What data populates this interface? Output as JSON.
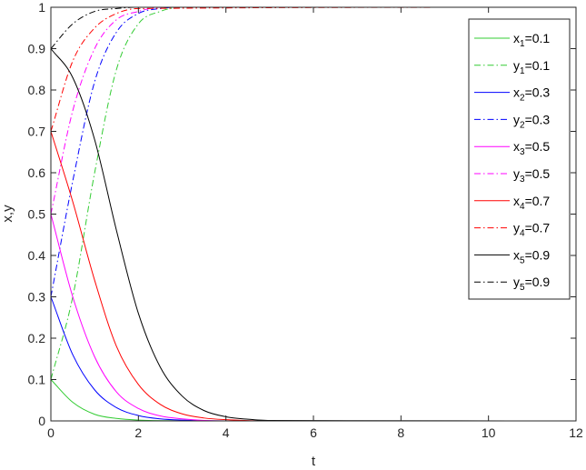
{
  "chart_data": {
    "type": "line",
    "title": "",
    "xlabel": "t",
    "ylabel": "x,y",
    "xlim": [
      0,
      12
    ],
    "ylim": [
      0,
      1
    ],
    "xticks": [
      "0",
      "2",
      "4",
      "6",
      "8",
      "10",
      "12"
    ],
    "yticks": [
      "0",
      "0.1",
      "0.2",
      "0.3",
      "0.4",
      "0.5",
      "0.6",
      "0.7",
      "0.8",
      "0.9",
      "1"
    ],
    "grid": false,
    "legend_position": "top-right",
    "series": [
      {
        "name": "x_1=0.1",
        "sym": "x",
        "sub": "1",
        "val": "=0.1",
        "color": "#33cc33",
        "style": "solid",
        "x": [
          0,
          0.5,
          1,
          1.5,
          2,
          3,
          4,
          5,
          12
        ],
        "y": [
          0.1,
          0.045,
          0.016,
          0.006,
          0.002,
          0.0003,
          0,
          0,
          0
        ]
      },
      {
        "name": "y_1=0.1",
        "sym": "y",
        "sub": "1",
        "val": "=0.1",
        "color": "#33cc33",
        "style": "dashdot",
        "x": [
          0,
          0.5,
          1,
          1.5,
          2,
          2.5,
          3,
          4,
          12
        ],
        "y": [
          0.1,
          0.3,
          0.6,
          0.85,
          0.96,
          0.99,
          1,
          1,
          1
        ]
      },
      {
        "name": "x_2=0.3",
        "sym": "x",
        "sub": "2",
        "val": "=0.3",
        "color": "#0000ff",
        "style": "solid",
        "x": [
          0,
          0.5,
          1,
          1.5,
          2,
          2.5,
          3,
          4,
          12
        ],
        "y": [
          0.3,
          0.16,
          0.075,
          0.032,
          0.013,
          0.005,
          0.002,
          0,
          0
        ]
      },
      {
        "name": "y_2=0.3",
        "sym": "y",
        "sub": "2",
        "val": "=0.3",
        "color": "#0000ff",
        "style": "dashdot",
        "x": [
          0,
          0.5,
          1,
          1.5,
          2,
          2.5,
          3,
          12
        ],
        "y": [
          0.3,
          0.58,
          0.82,
          0.94,
          0.985,
          0.997,
          1,
          1
        ]
      },
      {
        "name": "x_3=0.5",
        "sym": "x",
        "sub": "3",
        "val": "=0.5",
        "color": "#ff00ff",
        "style": "solid",
        "x": [
          0,
          0.5,
          1,
          1.5,
          2,
          2.5,
          3,
          4,
          12
        ],
        "y": [
          0.5,
          0.3,
          0.155,
          0.07,
          0.03,
          0.012,
          0.005,
          0,
          0
        ]
      },
      {
        "name": "y_3=0.5",
        "sym": "y",
        "sub": "3",
        "val": "=0.5",
        "color": "#ff00ff",
        "style": "dashdot",
        "x": [
          0,
          0.5,
          1,
          1.5,
          2,
          2.5,
          12
        ],
        "y": [
          0.5,
          0.75,
          0.9,
          0.97,
          0.99,
          1,
          1
        ]
      },
      {
        "name": "x_4=0.7",
        "sym": "x",
        "sub": "4",
        "val": "=0.7",
        "color": "#ff0000",
        "style": "solid",
        "x": [
          0,
          0.5,
          1,
          1.5,
          2,
          2.5,
          3,
          3.5,
          4,
          5,
          12
        ],
        "y": [
          0.7,
          0.53,
          0.34,
          0.18,
          0.088,
          0.04,
          0.017,
          0.007,
          0.003,
          0,
          0
        ]
      },
      {
        "name": "y_4=0.7",
        "sym": "y",
        "sub": "4",
        "val": "=0.7",
        "color": "#ff0000",
        "style": "dashdot",
        "x": [
          0,
          0.5,
          1,
          1.5,
          2,
          12
        ],
        "y": [
          0.7,
          0.87,
          0.95,
          0.985,
          0.997,
          1
        ]
      },
      {
        "name": "x_5=0.9",
        "sym": "x",
        "sub": "5",
        "val": "=0.9",
        "color": "#000000",
        "style": "solid",
        "x": [
          0,
          0.5,
          1,
          1.5,
          2,
          2.5,
          3,
          3.5,
          4,
          4.5,
          5,
          12
        ],
        "y": [
          0.9,
          0.83,
          0.68,
          0.46,
          0.26,
          0.13,
          0.06,
          0.025,
          0.01,
          0.004,
          0.001,
          0
        ]
      },
      {
        "name": "y_5=0.9",
        "sym": "y",
        "sub": "5",
        "val": "=0.9",
        "color": "#000000",
        "style": "dashdot",
        "x": [
          0,
          0.5,
          1,
          1.5,
          2,
          12
        ],
        "y": [
          0.9,
          0.96,
          0.99,
          0.997,
          1,
          1
        ]
      }
    ]
  }
}
